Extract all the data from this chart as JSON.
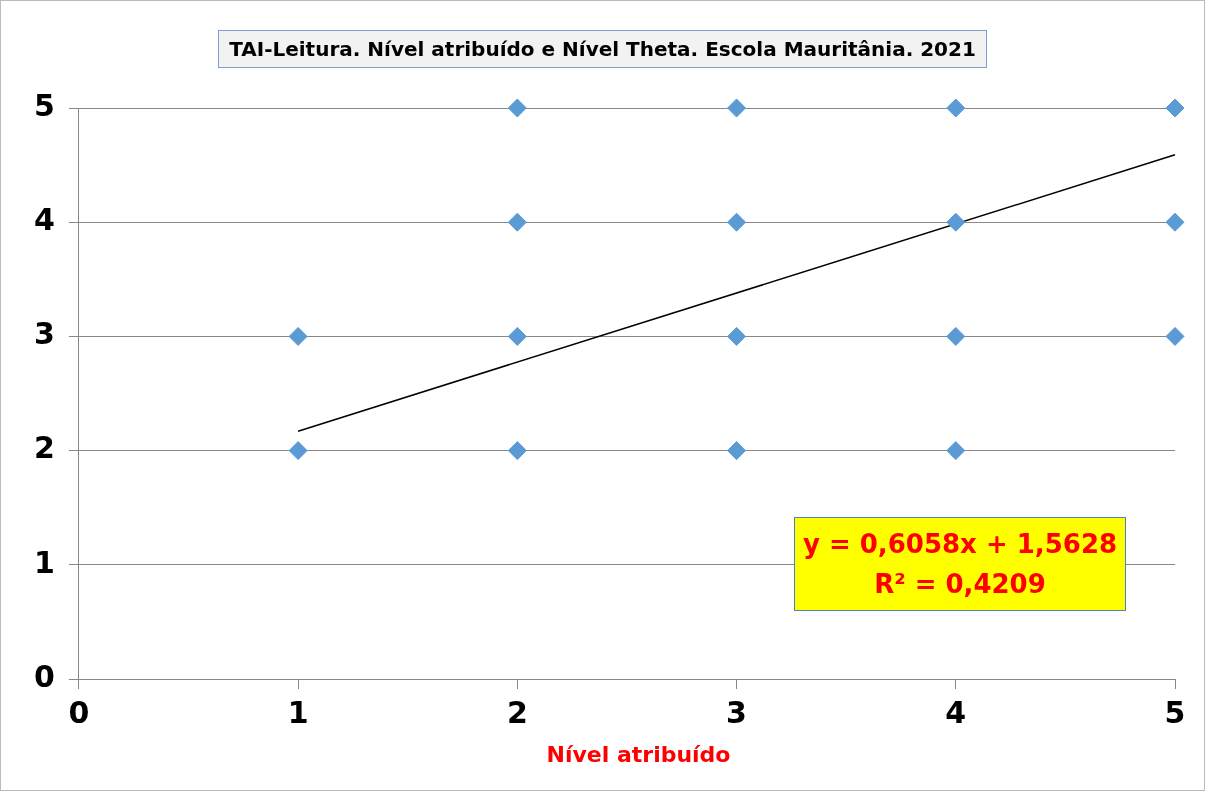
{
  "chart_data": {
    "type": "scatter",
    "title": "TAI-Leitura. Nível atribuído e Nível Theta. Escola Mauritânia. 2021",
    "xlabel": "Nível atribuído",
    "series": [
      {
        "type": "scatter",
        "color": "#5b9bd5",
        "marker": "diamond",
        "x": [
          1,
          1,
          2,
          2,
          2,
          2,
          3,
          3,
          3,
          3,
          4,
          4,
          4,
          4,
          5,
          5,
          5
        ],
        "values": [
          2,
          3,
          2,
          3,
          4,
          5,
          2,
          3,
          4,
          5,
          2,
          3,
          4,
          5,
          3,
          4,
          5
        ]
      },
      {
        "type": "line",
        "color": "#000000",
        "marker": "none",
        "x": [
          1,
          5
        ],
        "values": [
          2.17,
          4.59
        ]
      }
    ],
    "annotations": [
      "y = 0,6058x + 1,5628\nR² = 0,4209"
    ],
    "xlim": [
      0,
      5
    ],
    "xticks": [
      0,
      1,
      2,
      3,
      4,
      5
    ],
    "ylim": [
      0,
      5
    ],
    "yticks": [
      0,
      1,
      2,
      3,
      4,
      5
    ],
    "grid": "y",
    "legend": false
  }
}
